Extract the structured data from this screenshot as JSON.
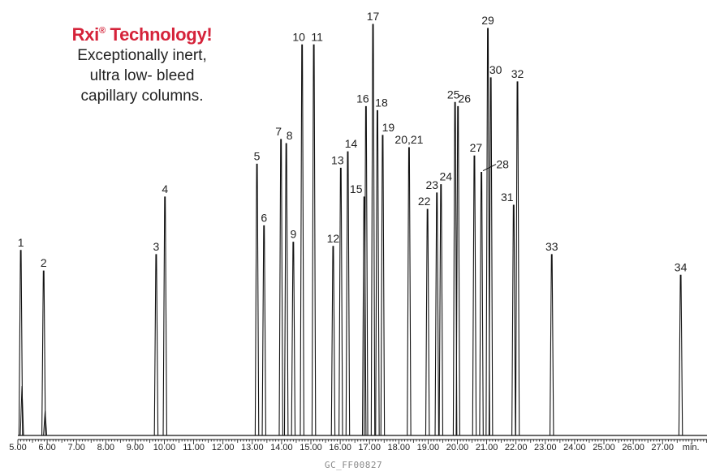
{
  "promo": {
    "title": "Rxi",
    "title_mark": "®",
    "title_rest": " Technology!",
    "lines": [
      "Exceptionally inert,",
      "ultra low- bleed",
      "capillary columns."
    ]
  },
  "footer_code": "GC_FF00827",
  "chart_data": {
    "type": "line",
    "title": "",
    "xlabel": "min.",
    "ylabel": "",
    "xlim": [
      5.0,
      28.8
    ],
    "ylim": [
      0,
      1
    ],
    "grid": false,
    "line_color": "#111111",
    "x_ticks": [
      5.0,
      6.0,
      7.0,
      8.0,
      9.0,
      10.0,
      11.0,
      12.0,
      13.0,
      14.0,
      15.0,
      16.0,
      17.0,
      18.0,
      19.0,
      20.0,
      21.0,
      22.0,
      23.0,
      24.0,
      25.0,
      26.0,
      27.0
    ],
    "x_tick_labels": [
      "5.00",
      "6.00",
      "7.00",
      "8.00",
      "9.00",
      "10.00",
      "11.00",
      "12.00",
      "13.00",
      "14.00",
      "15.00",
      "16.00",
      "17.00",
      "18.00",
      "19.00",
      "20.00",
      "21.00",
      "22.00",
      "23.00",
      "24.00",
      "25.00",
      "26.00",
      "27.00"
    ],
    "peaks": [
      {
        "label": "1",
        "x": 5.1,
        "h": 0.45
      },
      {
        "label": "2",
        "x": 5.88,
        "h": 0.4
      },
      {
        "label": "3",
        "x": 9.72,
        "h": 0.44
      },
      {
        "label": "4",
        "x": 10.02,
        "h": 0.58
      },
      {
        "label": "5",
        "x": 13.16,
        "h": 0.66
      },
      {
        "label": "6",
        "x": 13.4,
        "h": 0.51
      },
      {
        "label": "7",
        "x": 13.98,
        "h": 0.72
      },
      {
        "label": "8",
        "x": 14.16,
        "h": 0.71
      },
      {
        "label": "9",
        "x": 14.4,
        "h": 0.47
      },
      {
        "label": "10",
        "x": 14.7,
        "h": 0.95
      },
      {
        "label": "11",
        "x": 15.1,
        "h": 0.95
      },
      {
        "label": "12",
        "x": 15.76,
        "h": 0.46
      },
      {
        "label": "13",
        "x": 16.02,
        "h": 0.65
      },
      {
        "label": "14",
        "x": 16.26,
        "h": 0.69
      },
      {
        "label": "15",
        "x": 16.82,
        "h": 0.58
      },
      {
        "label": "16",
        "x": 16.88,
        "h": 0.8
      },
      {
        "label": "17",
        "x": 17.12,
        "h": 1.0
      },
      {
        "label": "18",
        "x": 17.27,
        "h": 0.79
      },
      {
        "label": "19",
        "x": 17.45,
        "h": 0.73
      },
      {
        "label": "20,21",
        "x": 18.35,
        "h": 0.7
      },
      {
        "label": "22",
        "x": 18.98,
        "h": 0.55
      },
      {
        "label": "23",
        "x": 19.3,
        "h": 0.59
      },
      {
        "label": "24",
        "x": 19.44,
        "h": 0.61
      },
      {
        "label": "25",
        "x": 19.92,
        "h": 0.81
      },
      {
        "label": "26",
        "x": 20.02,
        "h": 0.8
      },
      {
        "label": "27",
        "x": 20.58,
        "h": 0.68
      },
      {
        "label": "28",
        "x": 20.82,
        "h": 0.64
      },
      {
        "label": "29",
        "x": 21.04,
        "h": 0.99
      },
      {
        "label": "30",
        "x": 21.14,
        "h": 0.87
      },
      {
        "label": "31",
        "x": 21.92,
        "h": 0.56
      },
      {
        "label": "32",
        "x": 22.05,
        "h": 0.86
      },
      {
        "label": "33",
        "x": 23.22,
        "h": 0.44
      },
      {
        "label": "34",
        "x": 27.62,
        "h": 0.39
      }
    ]
  }
}
